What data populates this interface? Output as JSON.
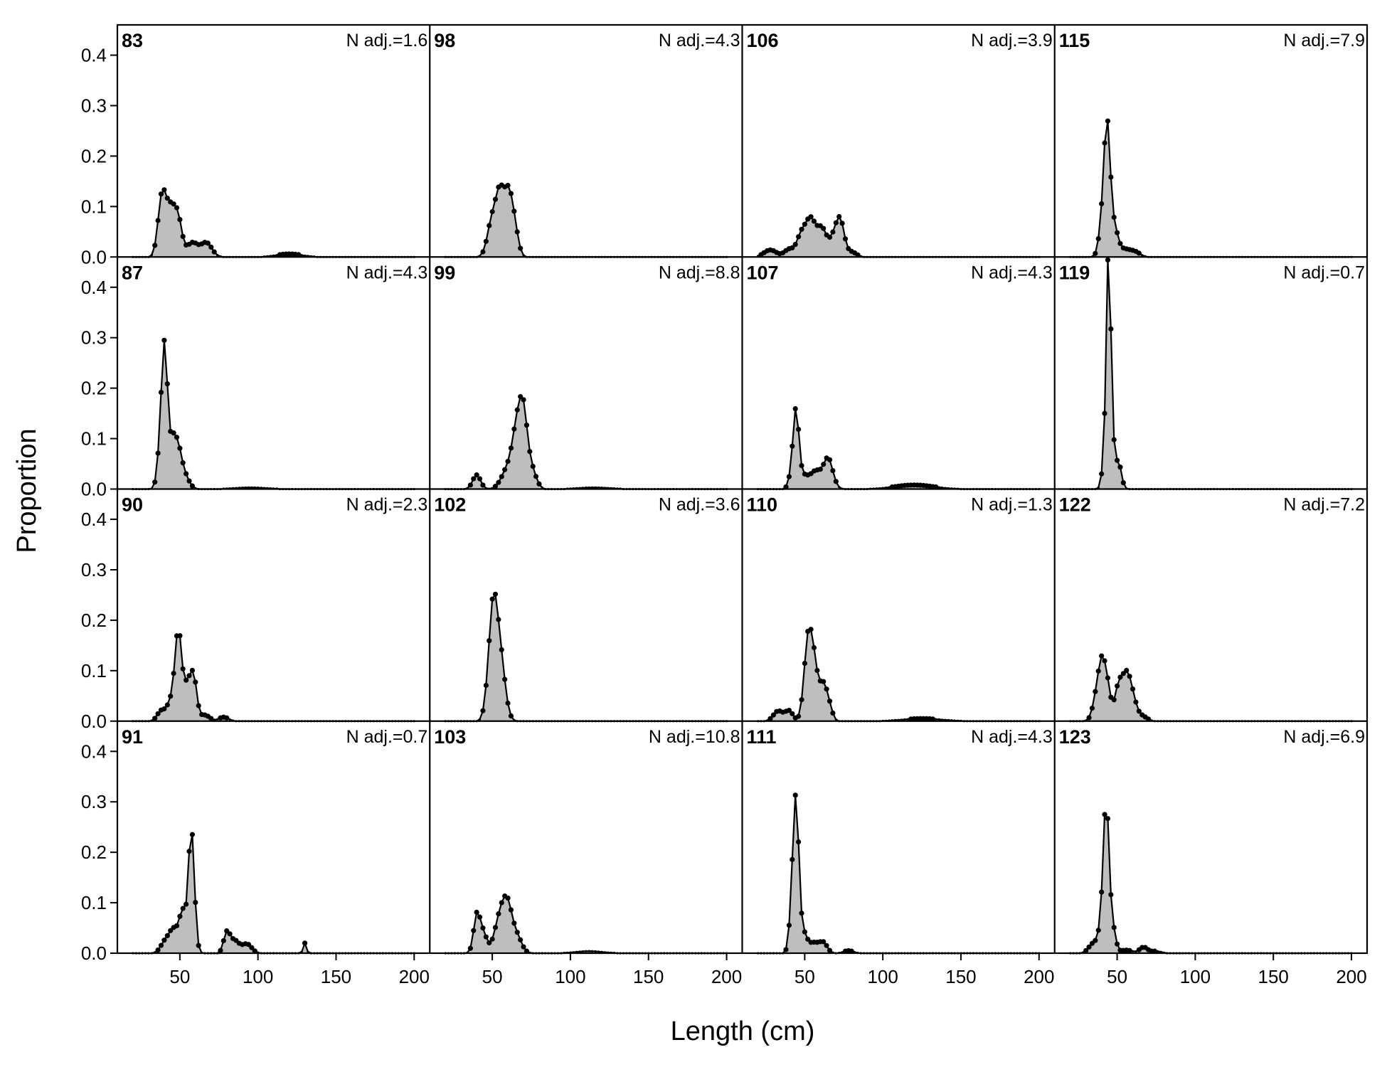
{
  "chart_data": {
    "type": "area",
    "layout": "4x4 panel grid",
    "xlabel": "Length (cm)",
    "ylabel": "Proportion",
    "xlim": [
      10,
      210
    ],
    "ylim": [
      0,
      0.46
    ],
    "xticks": [
      50,
      100,
      150,
      200
    ],
    "yticks": [
      0.0,
      0.1,
      0.2,
      0.3,
      0.4
    ],
    "ytick_labels": [
      "0.0",
      "0.1",
      "0.2",
      "0.3",
      "0.4"
    ],
    "fill_color": "#bebebe",
    "line_color": "#000000",
    "panels": [
      {
        "title": "83",
        "note": "N adj.=1.6",
        "peaks": [
          [
            38.5,
            0.115,
            2.5
          ],
          [
            44,
            0.09,
            3
          ],
          [
            49,
            0.065,
            2.5
          ],
          [
            58,
            0.028,
            3.5
          ],
          [
            67,
            0.028,
            3.5
          ],
          [
            120,
            0.006,
            8
          ]
        ]
      },
      {
        "title": "98",
        "note": "N adj.=4.3",
        "peaks": [
          [
            50,
            0.075,
            3
          ],
          [
            55,
            0.11,
            2.5
          ],
          [
            60,
            0.11,
            2.5
          ],
          [
            64,
            0.06,
            2.5
          ]
        ]
      },
      {
        "title": "106",
        "note": "N adj.=3.9",
        "peaks": [
          [
            28,
            0.014,
            4
          ],
          [
            40,
            0.015,
            3
          ],
          [
            48,
            0.045,
            3
          ],
          [
            54,
            0.07,
            3
          ],
          [
            61,
            0.055,
            3
          ],
          [
            69,
            0.04,
            3
          ],
          [
            73,
            0.06,
            2.5
          ],
          [
            80,
            0.01,
            3
          ]
        ]
      },
      {
        "title": "115",
        "note": "N adj.=7.9",
        "peaks": [
          [
            40,
            0.05,
            2
          ],
          [
            43.5,
            0.255,
            2
          ],
          [
            48,
            0.055,
            2.5
          ],
          [
            55,
            0.015,
            4
          ],
          [
            62,
            0.008,
            3
          ]
        ]
      },
      {
        "title": "87",
        "note": "N adj.=4.3",
        "peaks": [
          [
            38,
            0.1,
            2
          ],
          [
            40.5,
            0.24,
            1.8
          ],
          [
            45,
            0.07,
            2
          ],
          [
            48.5,
            0.075,
            2.5
          ],
          [
            53,
            0.025,
            3
          ],
          [
            95,
            0.003,
            10
          ]
        ]
      },
      {
        "title": "99",
        "note": "N adj.=8.8",
        "peaks": [
          [
            40,
            0.028,
            2.5
          ],
          [
            60,
            0.04,
            4
          ],
          [
            66,
            0.11,
            3
          ],
          [
            70,
            0.12,
            2.5
          ],
          [
            75,
            0.04,
            3
          ],
          [
            115,
            0.003,
            10
          ]
        ]
      },
      {
        "title": "107",
        "note": "N adj.=4.3",
        "peaks": [
          [
            42,
            0.03,
            2
          ],
          [
            44.5,
            0.14,
            1.8
          ],
          [
            49,
            0.025,
            3
          ],
          [
            57,
            0.035,
            3.5
          ],
          [
            65,
            0.06,
            3
          ],
          [
            120,
            0.008,
            12
          ]
        ]
      },
      {
        "title": "119",
        "note": "N adj.=0.7",
        "peaks": [
          [
            42,
            0.06,
            1.6
          ],
          [
            44.5,
            0.44,
            1.4
          ],
          [
            47,
            0.08,
            1.6
          ],
          [
            51,
            0.05,
            1.8
          ]
        ]
      },
      {
        "title": "90",
        "note": "N adj.=2.3",
        "peaks": [
          [
            38,
            0.02,
            2.5
          ],
          [
            44,
            0.035,
            2.5
          ],
          [
            49,
            0.175,
            2.2
          ],
          [
            55,
            0.07,
            2.5
          ],
          [
            59,
            0.075,
            2
          ],
          [
            66,
            0.012,
            3
          ],
          [
            78,
            0.008,
            3
          ]
        ]
      },
      {
        "title": "102",
        "note": "N adj.=3.6",
        "peaks": [
          [
            48,
            0.06,
            2.5
          ],
          [
            51,
            0.2,
            2.5
          ],
          [
            55,
            0.1,
            2.5
          ],
          [
            58,
            0.03,
            2.5
          ]
        ]
      },
      {
        "title": "110",
        "note": "N adj.=1.3",
        "peaks": [
          [
            33,
            0.02,
            3
          ],
          [
            40,
            0.02,
            2.5
          ],
          [
            52,
            0.15,
            2.5
          ],
          [
            56,
            0.1,
            2.5
          ],
          [
            62,
            0.07,
            2.5
          ],
          [
            66,
            0.02,
            2
          ],
          [
            125,
            0.005,
            12
          ]
        ]
      },
      {
        "title": "122",
        "note": "N adj.=7.2",
        "peaks": [
          [
            37,
            0.05,
            2.5
          ],
          [
            40.5,
            0.1,
            2.2
          ],
          [
            44,
            0.055,
            2
          ],
          [
            51,
            0.07,
            2.5
          ],
          [
            56,
            0.08,
            2.5
          ],
          [
            60,
            0.04,
            2.5
          ],
          [
            66,
            0.01,
            3
          ]
        ]
      },
      {
        "title": "91",
        "note": "N adj.=0.7",
        "peaks": [
          [
            41,
            0.025,
            3
          ],
          [
            46,
            0.04,
            2.5
          ],
          [
            52,
            0.085,
            2.5
          ],
          [
            57,
            0.2,
            1.6
          ],
          [
            59,
            0.08,
            1.6
          ],
          [
            80,
            0.038,
            2
          ],
          [
            85,
            0.025,
            3
          ],
          [
            93,
            0.018,
            3
          ],
          [
            130,
            0.02,
            1
          ]
        ]
      },
      {
        "title": "103",
        "note": "N adj.=10.8",
        "peaks": [
          [
            40,
            0.07,
            2
          ],
          [
            44,
            0.04,
            2.5
          ],
          [
            55,
            0.07,
            3.5
          ],
          [
            60,
            0.08,
            3
          ],
          [
            66,
            0.03,
            3
          ],
          [
            112,
            0.004,
            8
          ]
        ]
      },
      {
        "title": "111",
        "note": "N adj.=4.3",
        "peaks": [
          [
            42,
            0.08,
            1.8
          ],
          [
            44.5,
            0.275,
            1.8
          ],
          [
            49,
            0.04,
            2.5
          ],
          [
            56,
            0.02,
            3
          ],
          [
            62,
            0.02,
            2.5
          ],
          [
            78,
            0.005,
            3
          ]
        ]
      },
      {
        "title": "123",
        "note": "N adj.=6.9",
        "peaks": [
          [
            35,
            0.02,
            3
          ],
          [
            40,
            0.045,
            2
          ],
          [
            43,
            0.285,
            1.8
          ],
          [
            47,
            0.05,
            2
          ],
          [
            56,
            0.006,
            4
          ],
          [
            67,
            0.012,
            2.5
          ],
          [
            75,
            0.004,
            3
          ]
        ]
      }
    ]
  }
}
